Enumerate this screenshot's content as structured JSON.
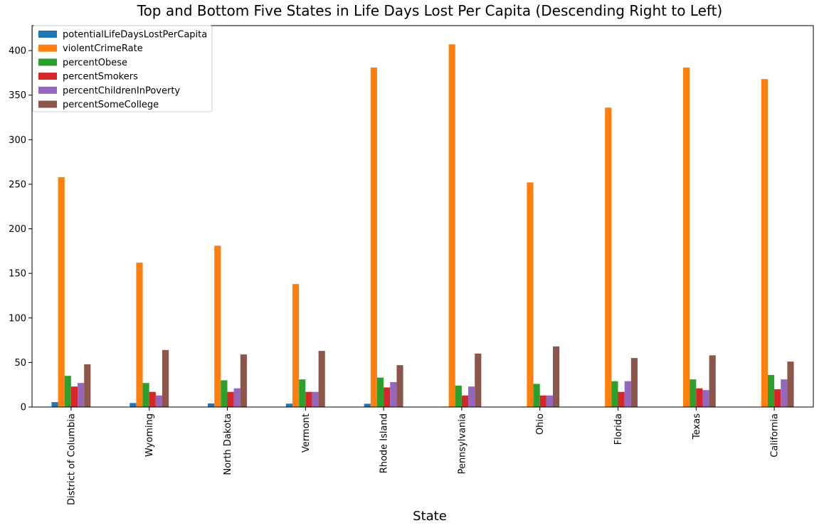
{
  "chart_data": {
    "type": "bar",
    "title": "Top and Bottom Five States in Life Days Lost Per Capita (Descending Right to Left)",
    "xlabel": "State",
    "ylabel": "",
    "ylim": [
      0,
      428
    ],
    "yticks": [
      0,
      50,
      100,
      150,
      200,
      250,
      300,
      350,
      400
    ],
    "legend_position": "top-left",
    "grid": false,
    "categories": [
      "District of Columbia",
      "Wyoming",
      "North Dakota",
      "Vermont",
      "Rhode Island",
      "Pennsylvania",
      "Ohio",
      "Florida",
      "Texas",
      "California"
    ],
    "series": [
      {
        "name": "potentialLifeDaysLostPerCapita",
        "color": "#1f77b4",
        "values": [
          5.5,
          4.5,
          4.0,
          3.8,
          3.7,
          0.5,
          0.5,
          0.4,
          0.4,
          0.3
        ]
      },
      {
        "name": "violentCrimeRate",
        "color": "#ff7f0e",
        "values": [
          258,
          162,
          181,
          138,
          381,
          407,
          252,
          336,
          381,
          368
        ]
      },
      {
        "name": "percentObese",
        "color": "#2ca02c",
        "values": [
          35,
          27,
          30,
          31,
          33,
          24,
          26,
          29,
          31,
          36
        ]
      },
      {
        "name": "percentSmokers",
        "color": "#d62728",
        "values": [
          23,
          17,
          17,
          17,
          22,
          13,
          13,
          17,
          21,
          20
        ]
      },
      {
        "name": "percentChildrenInPoverty",
        "color": "#9467bd",
        "values": [
          27,
          13,
          21,
          17,
          28,
          23,
          13,
          29,
          19,
          31
        ]
      },
      {
        "name": "percentSomeCollege",
        "color": "#8c564b",
        "values": [
          48,
          64,
          59,
          63,
          47,
          60,
          68,
          55,
          58,
          51
        ]
      }
    ]
  }
}
